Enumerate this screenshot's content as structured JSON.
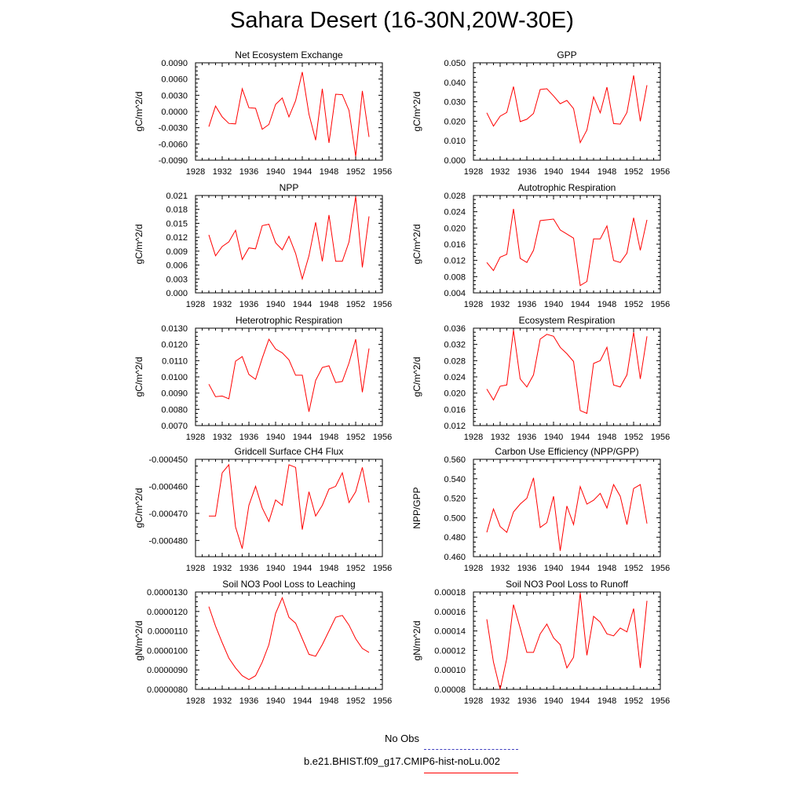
{
  "title": "Sahara Desert (16-30N,20W-30E)",
  "colors": {
    "series": "#ff0000",
    "obs": "#4040c0",
    "axis": "#000000"
  },
  "legend": {
    "obs_label": "No Obs",
    "model_label": "b.e21.BHIST.f09_g17.CMIP6-hist-noLu.002"
  },
  "chart_data": [
    {
      "type": "line",
      "title": "Net Ecosystem Exchange",
      "ylabel": "gC/m^2/d",
      "xlim": [
        1928,
        1956
      ],
      "ylim": [
        -0.009,
        0.009
      ],
      "xticks": [
        "1928",
        "1932",
        "1936",
        "1940",
        "1944",
        "1948",
        "1952",
        "1956"
      ],
      "yticks": [
        "-0.0090",
        "-0.0060",
        "-0.0030",
        "0.0000",
        "0.0030",
        "0.0060",
        "0.0090"
      ],
      "series": [
        {
          "x": [
            1930,
            1931,
            1932,
            1933,
            1934,
            1935,
            1936,
            1937,
            1938,
            1939,
            1940,
            1941,
            1942,
            1943,
            1944,
            1945,
            1946,
            1947,
            1948,
            1949,
            1950,
            1951,
            1952,
            1953,
            1954
          ],
          "values": [
            -0.0028,
            0.001,
            -0.001,
            -0.0022,
            -0.0023,
            0.0042,
            0.0007,
            0.0006,
            -0.0033,
            -0.0024,
            0.0013,
            0.0025,
            -0.001,
            0.002,
            0.0073,
            -0.0005,
            -0.0053,
            0.0042,
            -0.0058,
            0.0032,
            0.0031,
            0.0002,
            -0.0083,
            0.0038,
            -0.0047
          ]
        }
      ]
    },
    {
      "type": "line",
      "title": "GPP",
      "ylabel": "gC/m^2/d",
      "xlim": [
        1928,
        1956
      ],
      "ylim": [
        0.0,
        0.05
      ],
      "xticks": [
        "1928",
        "1932",
        "1936",
        "1940",
        "1944",
        "1948",
        "1952",
        "1956"
      ],
      "yticks": [
        "0.000",
        "0.010",
        "0.020",
        "0.030",
        "0.040",
        "0.050"
      ],
      "series": [
        {
          "x": [
            1930,
            1931,
            1932,
            1933,
            1934,
            1935,
            1936,
            1937,
            1938,
            1939,
            1940,
            1941,
            1942,
            1943,
            1944,
            1945,
            1946,
            1947,
            1948,
            1949,
            1950,
            1951,
            1952,
            1953,
            1954
          ],
          "values": [
            0.0243,
            0.0175,
            0.0226,
            0.0245,
            0.0378,
            0.0198,
            0.021,
            0.024,
            0.0363,
            0.0367,
            0.033,
            0.029,
            0.0307,
            0.0265,
            0.009,
            0.0155,
            0.0325,
            0.0243,
            0.0375,
            0.0188,
            0.0185,
            0.0245,
            0.0435,
            0.02,
            0.0385
          ]
        }
      ]
    },
    {
      "type": "line",
      "title": "NPP",
      "ylabel": "gC/m^2/d",
      "xlim": [
        1928,
        1956
      ],
      "ylim": [
        0.0,
        0.021
      ],
      "xticks": [
        "1928",
        "1932",
        "1936",
        "1940",
        "1944",
        "1948",
        "1952",
        "1956"
      ],
      "yticks": [
        "0.000",
        "0.003",
        "0.006",
        "0.009",
        "0.012",
        "0.015",
        "0.018",
        "0.021"
      ],
      "series": [
        {
          "x": [
            1930,
            1931,
            1932,
            1933,
            1934,
            1935,
            1936,
            1937,
            1938,
            1939,
            1940,
            1941,
            1942,
            1943,
            1944,
            1945,
            1946,
            1947,
            1948,
            1949,
            1950,
            1951,
            1952,
            1953,
            1954
          ],
          "values": [
            0.0125,
            0.008,
            0.01,
            0.011,
            0.0135,
            0.0072,
            0.0097,
            0.0095,
            0.0145,
            0.0148,
            0.0108,
            0.0093,
            0.0122,
            0.0085,
            0.003,
            0.008,
            0.0152,
            0.0068,
            0.0168,
            0.0068,
            0.0068,
            0.011,
            0.0208,
            0.0055,
            0.0165
          ]
        }
      ]
    },
    {
      "type": "line",
      "title": "Autotrophic Respiration",
      "ylabel": "gC/m^2/d",
      "xlim": [
        1928,
        1956
      ],
      "ylim": [
        0.004,
        0.028
      ],
      "xticks": [
        "1928",
        "1932",
        "1936",
        "1940",
        "1944",
        "1948",
        "1952",
        "1956"
      ],
      "yticks": [
        "0.004",
        "0.008",
        "0.012",
        "0.016",
        "0.020",
        "0.024",
        "0.028"
      ],
      "series": [
        {
          "x": [
            1930,
            1931,
            1932,
            1933,
            1934,
            1935,
            1936,
            1937,
            1938,
            1939,
            1940,
            1941,
            1942,
            1943,
            1944,
            1945,
            1946,
            1947,
            1948,
            1949,
            1950,
            1951,
            1952,
            1953,
            1954
          ],
          "values": [
            0.0115,
            0.0095,
            0.0128,
            0.0135,
            0.0247,
            0.0125,
            0.0115,
            0.0145,
            0.0218,
            0.022,
            0.0222,
            0.0195,
            0.0185,
            0.0175,
            0.0058,
            0.0068,
            0.0173,
            0.0173,
            0.0205,
            0.012,
            0.0115,
            0.0138,
            0.0225,
            0.0145,
            0.022
          ]
        }
      ]
    },
    {
      "type": "line",
      "title": "Heterotrophic Respiration",
      "ylabel": "gC/m^2/d",
      "xlim": [
        1928,
        1956
      ],
      "ylim": [
        0.007,
        0.013
      ],
      "xticks": [
        "1928",
        "1932",
        "1936",
        "1940",
        "1944",
        "1948",
        "1952",
        "1956"
      ],
      "yticks": [
        "0.0070",
        "0.0080",
        "0.0090",
        "0.0100",
        "0.0110",
        "0.0120",
        "0.0130"
      ],
      "series": [
        {
          "x": [
            1930,
            1931,
            1932,
            1933,
            1934,
            1935,
            1936,
            1937,
            1938,
            1939,
            1940,
            1941,
            1942,
            1943,
            1944,
            1945,
            1946,
            1947,
            1948,
            1949,
            1950,
            1951,
            1952,
            1953,
            1954
          ],
          "values": [
            0.00955,
            0.00878,
            0.00882,
            0.00865,
            0.01097,
            0.01125,
            0.01015,
            0.00985,
            0.01115,
            0.01232,
            0.01172,
            0.01148,
            0.01105,
            0.0101,
            0.0101,
            0.00785,
            0.00978,
            0.01058,
            0.01068,
            0.00965,
            0.00972,
            0.01085,
            0.01232,
            0.00905,
            0.01175
          ]
        }
      ]
    },
    {
      "type": "line",
      "title": "Ecosystem Respiration",
      "ylabel": "gC/m^2/d",
      "xlim": [
        1928,
        1956
      ],
      "ylim": [
        0.012,
        0.036
      ],
      "xticks": [
        "1928",
        "1932",
        "1936",
        "1940",
        "1944",
        "1948",
        "1952",
        "1956"
      ],
      "yticks": [
        "0.012",
        "0.016",
        "0.020",
        "0.024",
        "0.028",
        "0.032",
        "0.036"
      ],
      "series": [
        {
          "x": [
            1930,
            1931,
            1932,
            1933,
            1934,
            1935,
            1936,
            1937,
            1938,
            1939,
            1940,
            1941,
            1942,
            1943,
            1944,
            1945,
            1946,
            1947,
            1948,
            1949,
            1950,
            1951,
            1952,
            1953,
            1954
          ],
          "values": [
            0.021,
            0.0183,
            0.0217,
            0.022,
            0.0355,
            0.0235,
            0.0215,
            0.0245,
            0.0333,
            0.0345,
            0.034,
            0.0313,
            0.0297,
            0.0278,
            0.0157,
            0.015,
            0.0273,
            0.028,
            0.0313,
            0.022,
            0.0215,
            0.0245,
            0.035,
            0.0235,
            0.034
          ]
        }
      ]
    },
    {
      "type": "line",
      "title": "Gridcell Surface CH4 Flux",
      "ylabel": "gC/m^2/d",
      "xlim": [
        1928,
        1956
      ],
      "ylim": [
        -0.000486,
        -0.00045
      ],
      "xticks": [
        "1928",
        "1932",
        "1936",
        "1940",
        "1944",
        "1948",
        "1952",
        "1956"
      ],
      "yticks": [
        "-0.000480",
        "-0.000470",
        "-0.000460",
        "-0.000450"
      ],
      "ytick_values": [
        -0.00048,
        -0.00047,
        -0.00046,
        -0.00045
      ],
      "series": [
        {
          "x": [
            1930,
            1931,
            1932,
            1933,
            1934,
            1935,
            1936,
            1937,
            1938,
            1939,
            1940,
            1941,
            1942,
            1943,
            1944,
            1945,
            1946,
            1947,
            1948,
            1949,
            1950,
            1951,
            1952,
            1953,
            1954
          ],
          "values": [
            -0.000471,
            -0.000471,
            -0.000455,
            -0.000452,
            -0.000475,
            -0.000483,
            -0.000467,
            -0.00046,
            -0.000468,
            -0.000473,
            -0.000465,
            -0.000467,
            -0.000452,
            -0.000453,
            -0.000476,
            -0.000462,
            -0.000471,
            -0.000467,
            -0.000461,
            -0.00046,
            -0.000455,
            -0.000466,
            -0.000462,
            -0.000453,
            -0.000466
          ]
        }
      ]
    },
    {
      "type": "line",
      "title": "Carbon Use Efficiency (NPP/GPP)",
      "ylabel": "NPP/GPP",
      "xlim": [
        1928,
        1956
      ],
      "ylim": [
        0.46,
        0.56
      ],
      "xticks": [
        "1928",
        "1932",
        "1936",
        "1940",
        "1944",
        "1948",
        "1952",
        "1956"
      ],
      "yticks": [
        "0.460",
        "0.480",
        "0.500",
        "0.520",
        "0.540",
        "0.560"
      ],
      "series": [
        {
          "x": [
            1930,
            1931,
            1932,
            1933,
            1934,
            1935,
            1936,
            1937,
            1938,
            1939,
            1940,
            1941,
            1942,
            1943,
            1944,
            1945,
            1946,
            1947,
            1948,
            1949,
            1950,
            1951,
            1952,
            1953,
            1954
          ],
          "values": [
            0.485,
            0.509,
            0.491,
            0.485,
            0.506,
            0.514,
            0.52,
            0.541,
            0.49,
            0.495,
            0.522,
            0.466,
            0.512,
            0.493,
            0.532,
            0.514,
            0.518,
            0.525,
            0.51,
            0.534,
            0.522,
            0.493,
            0.53,
            0.534,
            0.494
          ]
        }
      ]
    },
    {
      "type": "line",
      "title": "Soil NO3 Pool Loss to Leaching",
      "ylabel": "gN/m^2/d",
      "xlim": [
        1928,
        1956
      ],
      "ylim": [
        8e-06,
        1.3e-05
      ],
      "xticks": [
        "1928",
        "1932",
        "1936",
        "1940",
        "1944",
        "1948",
        "1952",
        "1956"
      ],
      "yticks": [
        "0.0000080",
        "0.0000090",
        "0.0000100",
        "0.0000110",
        "0.0000120",
        "0.0000130"
      ],
      "series": [
        {
          "x": [
            1930,
            1931,
            1932,
            1933,
            1934,
            1935,
            1936,
            1937,
            1938,
            1939,
            1940,
            1941,
            1942,
            1943,
            1944,
            1945,
            1946,
            1947,
            1948,
            1949,
            1950,
            1951,
            1952,
            1953,
            1954
          ],
          "values": [
            1.225e-05,
            1.125e-05,
            1.04e-05,
            9.6e-06,
            9.1e-06,
            8.7e-06,
            8.5e-06,
            8.7e-06,
            9.4e-06,
            1.03e-05,
            1.19e-05,
            1.27e-05,
            1.17e-05,
            1.14e-05,
            1.06e-05,
            9.8e-06,
            9.7e-06,
            1.03e-05,
            1.1e-05,
            1.17e-05,
            1.18e-05,
            1.13e-05,
            1.06e-05,
            1.01e-05,
            9.9e-06
          ]
        }
      ]
    },
    {
      "type": "line",
      "title": "Soil NO3 Pool Loss to Runoff",
      "ylabel": "gN/m^2/d",
      "xlim": [
        1928,
        1956
      ],
      "ylim": [
        8e-05,
        0.00018
      ],
      "xticks": [
        "1928",
        "1932",
        "1936",
        "1940",
        "1944",
        "1948",
        "1952",
        "1956"
      ],
      "yticks": [
        "0.00008",
        "0.00010",
        "0.00012",
        "0.00014",
        "0.00016",
        "0.00018"
      ],
      "series": [
        {
          "x": [
            1930,
            1931,
            1932,
            1933,
            1934,
            1935,
            1936,
            1937,
            1938,
            1939,
            1940,
            1941,
            1942,
            1943,
            1944,
            1945,
            1946,
            1947,
            1948,
            1949,
            1950,
            1951,
            1952,
            1953,
            1954
          ],
          "values": [
            0.000152,
            0.000108,
            8e-05,
            0.000112,
            0.000167,
            0.000143,
            0.000118,
            0.000118,
            0.000137,
            0.000147,
            0.000133,
            0.000126,
            0.000102,
            0.000113,
            0.000179,
            0.000115,
            0.000155,
            0.000149,
            0.000137,
            0.000135,
            0.000143,
            0.000139,
            0.000163,
            0.000102,
            0.000171
          ]
        }
      ]
    }
  ]
}
